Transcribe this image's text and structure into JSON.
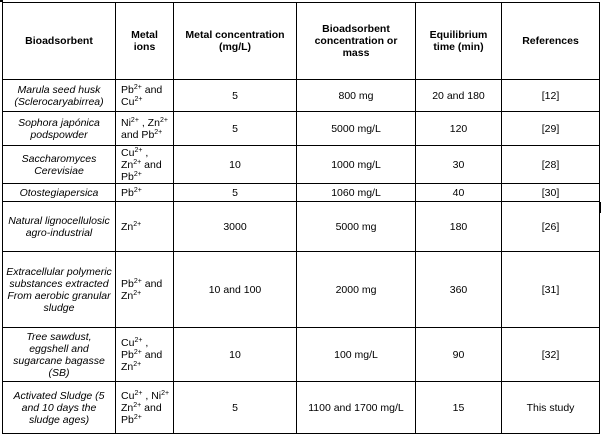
{
  "headers": [
    "Bioadsorbent",
    "Metal ions",
    "Metal concentration (mg/L)",
    "Bioadsorbent concentration or mass",
    "Equilibrium time (min)",
    "References"
  ],
  "rows": [
    {
      "bioadsorbent": "Marula seed husk (Sclerocaryabirrea)",
      "metal_ions": [
        [
          "Pb",
          "2+"
        ],
        [
          "and",
          ""
        ],
        [
          "Cu",
          "2+"
        ]
      ],
      "metal_concentration": "5",
      "bioadsorbent_amount": "800 mg",
      "equilibrium_time": "20 and 180",
      "reference": "[12]"
    },
    {
      "bioadsorbent": "Sophora japónica podspowder",
      "metal_ions": [
        [
          "Ni",
          "2+"
        ],
        [
          ",",
          ""
        ],
        [
          "Zn",
          "2+"
        ],
        [
          "and Pb",
          "2+"
        ]
      ],
      "metal_concentration": "5",
      "bioadsorbent_amount": "5000 mg/L",
      "equilibrium_time": "120",
      "reference": "[29]"
    },
    {
      "bioadsorbent": "Saccharomyces Cerevisiae",
      "metal_ions": [
        [
          "Cu",
          "2+"
        ],
        [
          ",",
          ""
        ],
        [
          "Zn",
          "2+"
        ],
        [
          "and",
          ""
        ],
        [
          "Pb",
          "2+"
        ]
      ],
      "metal_concentration": "10",
      "bioadsorbent_amount": "1000 mg/L",
      "equilibrium_time": "30",
      "reference": "[28]"
    },
    {
      "bioadsorbent": "Otostegiapersica",
      "metal_ions": [
        [
          "Pb",
          "2+"
        ]
      ],
      "metal_concentration": "5",
      "bioadsorbent_amount": "1060 mg/L",
      "equilibrium_time": "40",
      "reference": "[30]"
    },
    {
      "bioadsorbent": "Natural lignocellulosic agro-industrial",
      "metal_ions": [
        [
          "Zn",
          "2+"
        ]
      ],
      "metal_concentration": "3000",
      "bioadsorbent_amount": "5000 mg",
      "equilibrium_time": "180",
      "reference": "[26]"
    },
    {
      "bioadsorbent": "Extracellular polymeric substances extracted From aerobic granular sludge",
      "metal_ions": [
        [
          "Pb",
          "2+"
        ],
        [
          "and",
          ""
        ],
        [
          "Zn",
          "2+"
        ]
      ],
      "metal_concentration": "10 and 100",
      "bioadsorbent_amount": "2000 mg",
      "equilibrium_time": "360",
      "reference": "[31]"
    },
    {
      "bioadsorbent": "Tree sawdust, eggshell and sugarcane bagasse (SB)",
      "metal_ions": [
        [
          "Cu",
          "2+"
        ],
        [
          ",",
          ""
        ],
        [
          "Pb",
          "2+"
        ],
        [
          "and",
          ""
        ],
        [
          "Zn",
          "2+"
        ]
      ],
      "metal_concentration": "10",
      "bioadsorbent_amount": "100 mg/L",
      "equilibrium_time": "90",
      "reference": "[32]"
    },
    {
      "bioadsorbent": "Activated Sludge (5 and 10 days the sludge ages)",
      "metal_ions": [
        [
          "Cu",
          "2+"
        ],
        [
          ",",
          ""
        ],
        [
          "Ni",
          "2+"
        ],
        [
          "Zn",
          "2+"
        ],
        [
          "and Pb",
          "2+"
        ]
      ],
      "metal_concentration": "5",
      "bioadsorbent_amount": "1100 and 1700 mg/L",
      "equilibrium_time": "15",
      "reference": "This study"
    }
  ]
}
